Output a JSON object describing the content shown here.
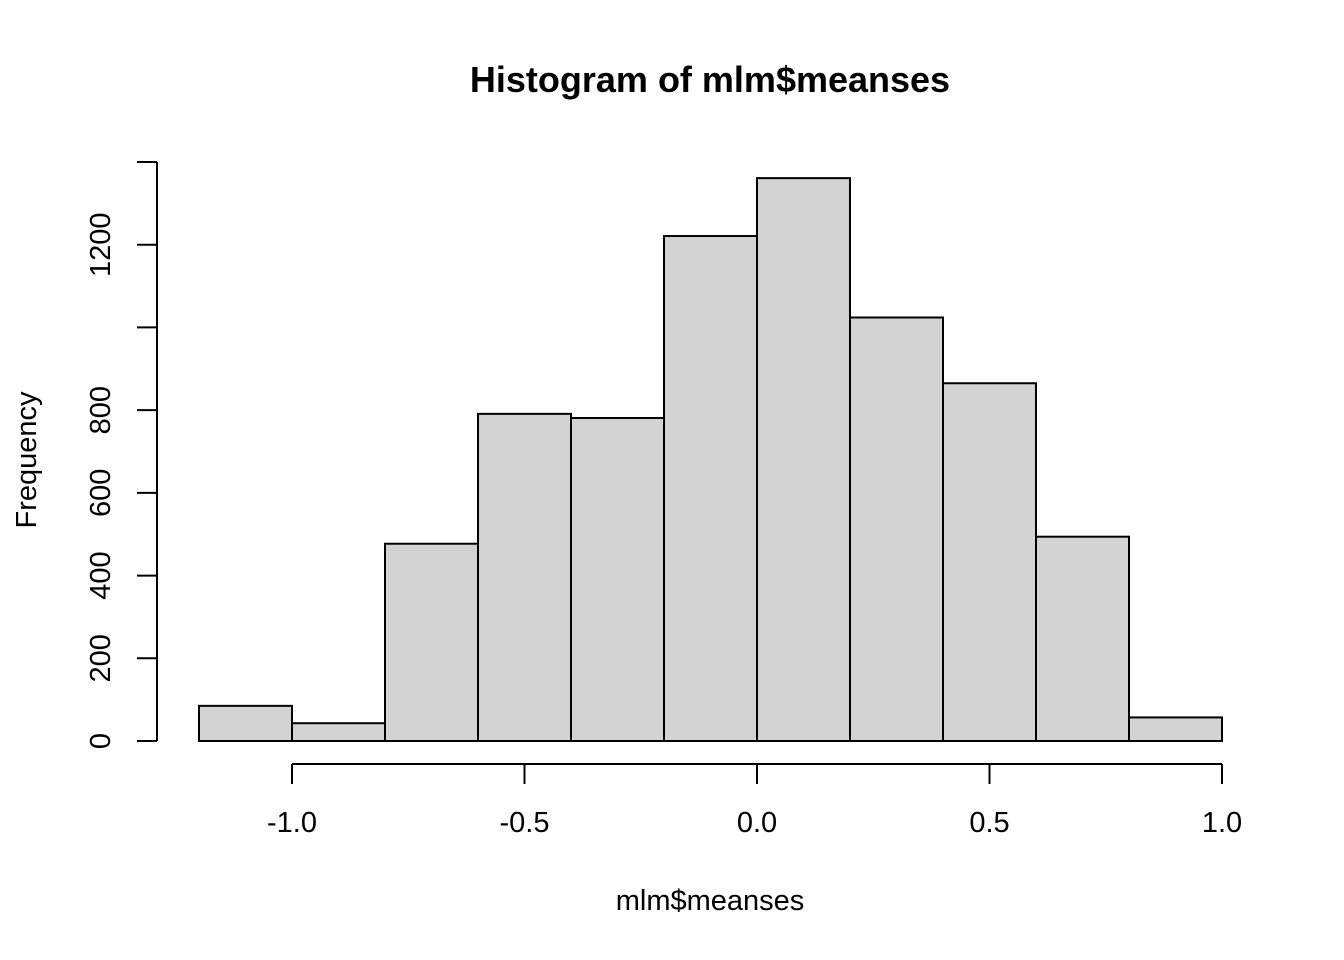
{
  "chart_data": {
    "type": "histogram",
    "title": "Histogram of mlm$meanses",
    "xlabel": "mlm$meanses",
    "ylabel": "Frequency",
    "bin_edges": [
      -1.2,
      -1.0,
      -0.8,
      -0.6,
      -0.4,
      -0.2,
      0.0,
      0.2,
      0.4,
      0.6,
      0.8,
      1.0
    ],
    "values": [
      85,
      43,
      477,
      791,
      781,
      1221,
      1361,
      1024,
      865,
      494,
      57
    ],
    "xlim": [
      -1.2,
      1.0
    ],
    "ylim": [
      0,
      1400
    ],
    "x_ticks": [
      -1.0,
      -0.5,
      0.0,
      0.5,
      1.0
    ],
    "x_tick_labels": [
      "-1.0",
      "-0.5",
      "0.0",
      "0.5",
      "1.0"
    ],
    "y_ticks": [
      0,
      200,
      400,
      600,
      800,
      1000,
      1200,
      1400
    ],
    "y_tick_labels": [
      "0",
      "200",
      "400",
      "600",
      "800",
      "",
      "1200",
      ""
    ],
    "grid": false,
    "colors": {
      "bar_fill": "#d3d3d3",
      "bar_stroke": "#000000"
    }
  }
}
